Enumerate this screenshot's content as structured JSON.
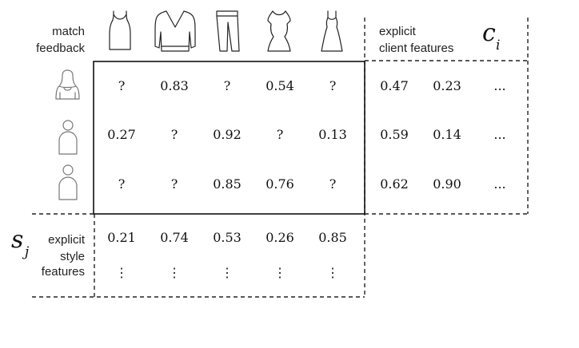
{
  "labels": {
    "match_feedback_line1": "match",
    "match_feedback_line2": "feedback",
    "client_features_line1": "explicit",
    "client_features_line2": "client features",
    "client_symbol": "c",
    "client_subscript": "i",
    "style_features_line1": "explicit",
    "style_features_line2": "style",
    "style_features_line3": "features",
    "style_symbol": "s",
    "style_subscript": "j"
  },
  "garments": [
    {
      "icon": "tank-top-icon"
    },
    {
      "icon": "sweater-icon"
    },
    {
      "icon": "pants-icon"
    },
    {
      "icon": "fitted-dress-icon"
    },
    {
      "icon": "maxi-dress-icon"
    }
  ],
  "clients": [
    {
      "icon": "woman-avatar-icon"
    },
    {
      "icon": "person-avatar-icon"
    },
    {
      "icon": "person-avatar-icon"
    }
  ],
  "match_matrix": [
    [
      "?",
      "0.83",
      "?",
      "0.54",
      "?"
    ],
    [
      "0.27",
      "?",
      "0.92",
      "?",
      "0.13"
    ],
    [
      "?",
      "?",
      "0.85",
      "0.76",
      "?"
    ]
  ],
  "client_features": [
    [
      "0.47",
      "0.23",
      "..."
    ],
    [
      "0.59",
      "0.14",
      "..."
    ],
    [
      "0.62",
      "0.90",
      "..."
    ]
  ],
  "style_features": [
    [
      "0.21",
      "0.74",
      "0.53",
      "0.26",
      "0.85"
    ],
    [
      "⋮",
      "⋮",
      "⋮",
      "⋮",
      "⋮"
    ]
  ]
}
